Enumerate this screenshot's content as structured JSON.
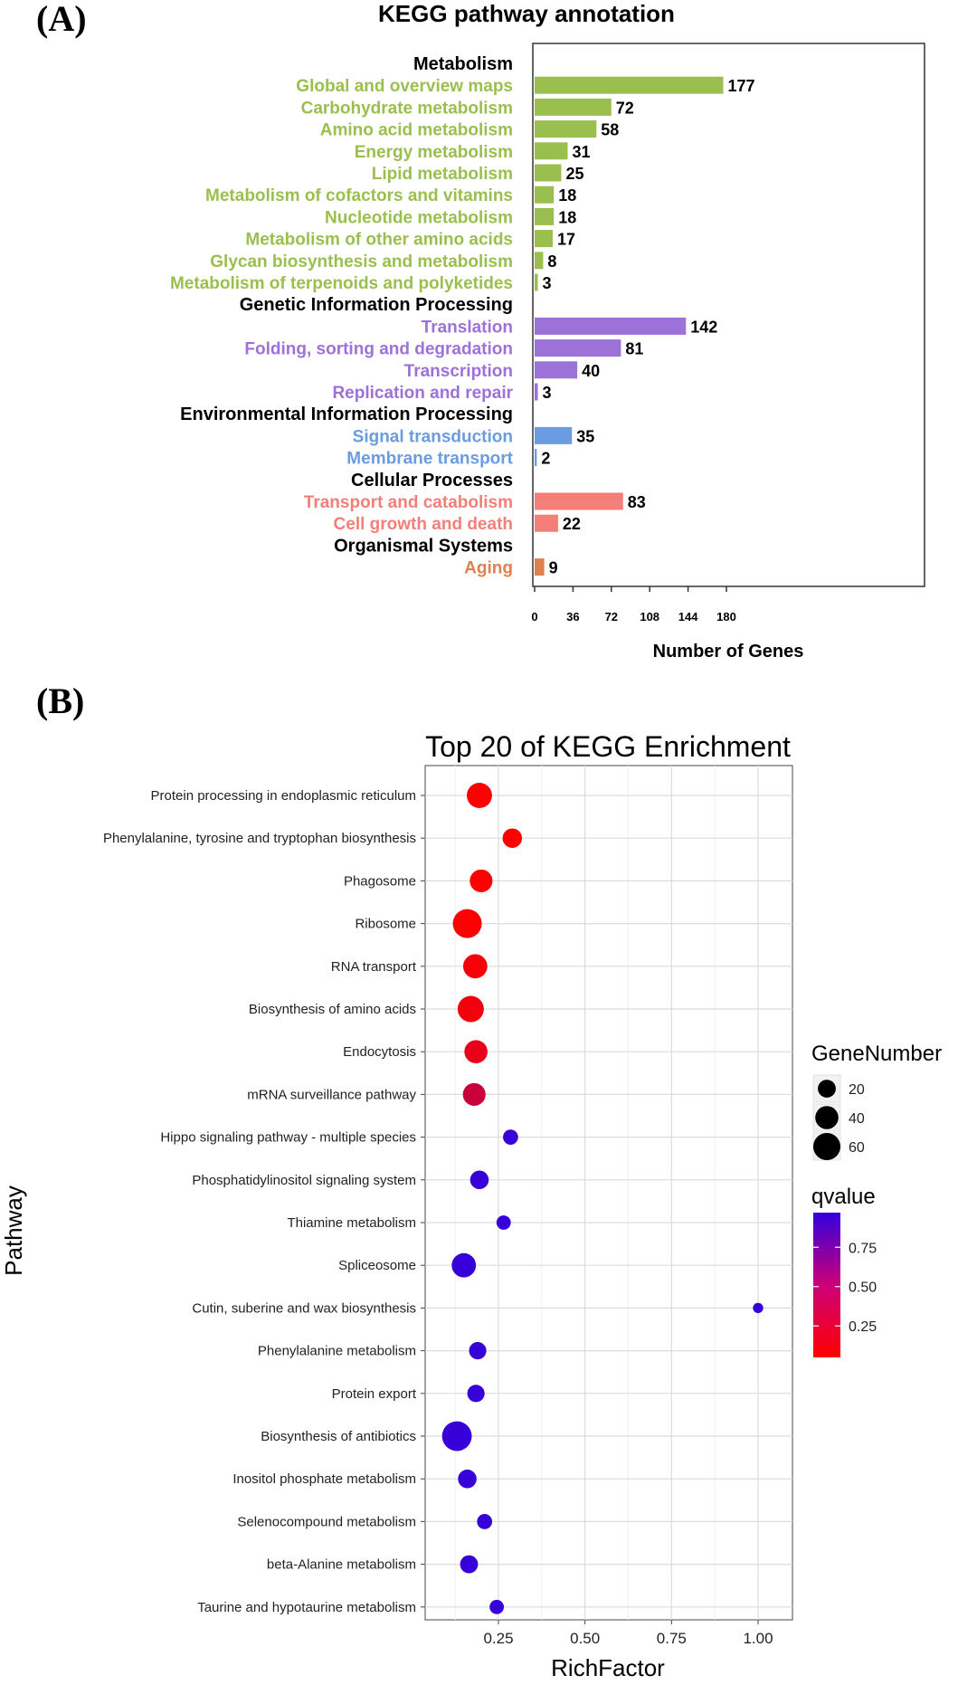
{
  "panels": {
    "a_label": "(A)",
    "b_label": "(B)"
  },
  "chart_data": [
    {
      "type": "bar",
      "orientation": "horizontal",
      "title": "KEGG pathway annotation",
      "xlabel": "Number of Genes",
      "ylabel": "",
      "xlim": [
        0,
        200
      ],
      "xticks": [
        0,
        36,
        72,
        108,
        144,
        180
      ],
      "grid": false,
      "colors": {
        "Metabolism": "#9bbf4f",
        "Genetic Information Processing": "#9d72d8",
        "Environmental Information Processing": "#6b9be0",
        "Cellular Processes": "#f37f78",
        "Organismal Systems": "#e07f50"
      },
      "groups": [
        {
          "name": "Metabolism",
          "items": [
            {
              "label": "Global and overview maps",
              "value": 177
            },
            {
              "label": "Carbohydrate metabolism",
              "value": 72
            },
            {
              "label": "Amino acid metabolism",
              "value": 58
            },
            {
              "label": "Energy metabolism",
              "value": 31
            },
            {
              "label": "Lipid metabolism",
              "value": 25
            },
            {
              "label": "Metabolism of cofactors and vitamins",
              "value": 18
            },
            {
              "label": "Nucleotide metabolism",
              "value": 18
            },
            {
              "label": "Metabolism of other amino acids",
              "value": 17
            },
            {
              "label": "Glycan biosynthesis and metabolism",
              "value": 8
            },
            {
              "label": "Metabolism of terpenoids and polyketides",
              "value": 3
            }
          ]
        },
        {
          "name": "Genetic Information Processing",
          "items": [
            {
              "label": "Translation",
              "value": 142
            },
            {
              "label": "Folding, sorting and degradation",
              "value": 81
            },
            {
              "label": "Transcription",
              "value": 40
            },
            {
              "label": "Replication and repair",
              "value": 3
            }
          ]
        },
        {
          "name": "Environmental Information Processing",
          "items": [
            {
              "label": "Signal transduction",
              "value": 35
            },
            {
              "label": "Membrane transport",
              "value": 2
            }
          ]
        },
        {
          "name": "Cellular Processes",
          "items": [
            {
              "label": "Transport and catabolism",
              "value": 83
            },
            {
              "label": "Cell growth and death",
              "value": 22
            }
          ]
        },
        {
          "name": "Organismal Systems",
          "items": [
            {
              "label": "Aging",
              "value": 9
            }
          ]
        }
      ]
    },
    {
      "type": "scatter",
      "title": "Top 20 of KEGG Enrichment",
      "xlabel": "RichFactor",
      "ylabel": "Pathway",
      "xlim": [
        0.1,
        1.05
      ],
      "xticks": [
        0.25,
        0.5,
        0.75,
        1.0
      ],
      "xtick_labels": [
        "0.25",
        "0.50",
        "0.75",
        "1.00"
      ],
      "grid": true,
      "size_legend": {
        "title": "GeneNumber",
        "values": [
          20,
          40,
          60
        ]
      },
      "color_legend": {
        "title": "qvalue",
        "ticks": [
          0.25,
          0.5,
          0.75
        ],
        "tick_labels": [
          "0.25",
          "0.50",
          "0.75"
        ],
        "low_color": "#ff0000",
        "high_color": "#3300dd",
        "range": [
          0.05,
          0.97
        ]
      },
      "points": [
        {
          "pathway": "Protein processing in endoplasmic reticulum",
          "richfactor": 0.195,
          "genes": 50,
          "qvalue": 0.02
        },
        {
          "pathway": "Phenylalanine, tyrosine and tryptophan biosynthesis",
          "richfactor": 0.29,
          "genes": 25,
          "qvalue": 0.03
        },
        {
          "pathway": "Phagosome",
          "richfactor": 0.2,
          "genes": 38,
          "qvalue": 0.05
        },
        {
          "pathway": "Ribosome",
          "richfactor": 0.16,
          "genes": 70,
          "qvalue": 0.06
        },
        {
          "pathway": "RNA transport",
          "richfactor": 0.183,
          "genes": 45,
          "qvalue": 0.08
        },
        {
          "pathway": "Biosynthesis of amino acids",
          "richfactor": 0.17,
          "genes": 55,
          "qvalue": 0.1
        },
        {
          "pathway": "Endocytosis",
          "richfactor": 0.185,
          "genes": 40,
          "qvalue": 0.15
        },
        {
          "pathway": "mRNA surveillance pathway",
          "richfactor": 0.18,
          "genes": 38,
          "qvalue": 0.3
        },
        {
          "pathway": "Hippo signaling pathway - multiple species",
          "richfactor": 0.285,
          "genes": 12,
          "qvalue": 0.95
        },
        {
          "pathway": "Phosphatidylinositol signaling system",
          "richfactor": 0.195,
          "genes": 22,
          "qvalue": 0.95
        },
        {
          "pathway": "Thiamine metabolism",
          "richfactor": 0.265,
          "genes": 10,
          "qvalue": 0.95
        },
        {
          "pathway": "Spliceosome",
          "richfactor": 0.15,
          "genes": 45,
          "qvalue": 0.95
        },
        {
          "pathway": "Cutin, suberine and wax biosynthesis",
          "richfactor": 1.0,
          "genes": 3,
          "qvalue": 0.95
        },
        {
          "pathway": "Phenylalanine metabolism",
          "richfactor": 0.19,
          "genes": 18,
          "qvalue": 0.95
        },
        {
          "pathway": "Protein export",
          "richfactor": 0.185,
          "genes": 18,
          "qvalue": 0.95
        },
        {
          "pathway": "Biosynthesis of antibiotics",
          "richfactor": 0.13,
          "genes": 75,
          "qvalue": 0.95
        },
        {
          "pathway": "Inositol phosphate metabolism",
          "richfactor": 0.16,
          "genes": 22,
          "qvalue": 0.95
        },
        {
          "pathway": "Selenocompound metabolism",
          "richfactor": 0.21,
          "genes": 12,
          "qvalue": 0.95
        },
        {
          "pathway": "beta-Alanine metabolism",
          "richfactor": 0.165,
          "genes": 20,
          "qvalue": 0.95
        },
        {
          "pathway": "Taurine and hypotaurine metabolism",
          "richfactor": 0.245,
          "genes": 10,
          "qvalue": 0.95
        }
      ]
    }
  ]
}
